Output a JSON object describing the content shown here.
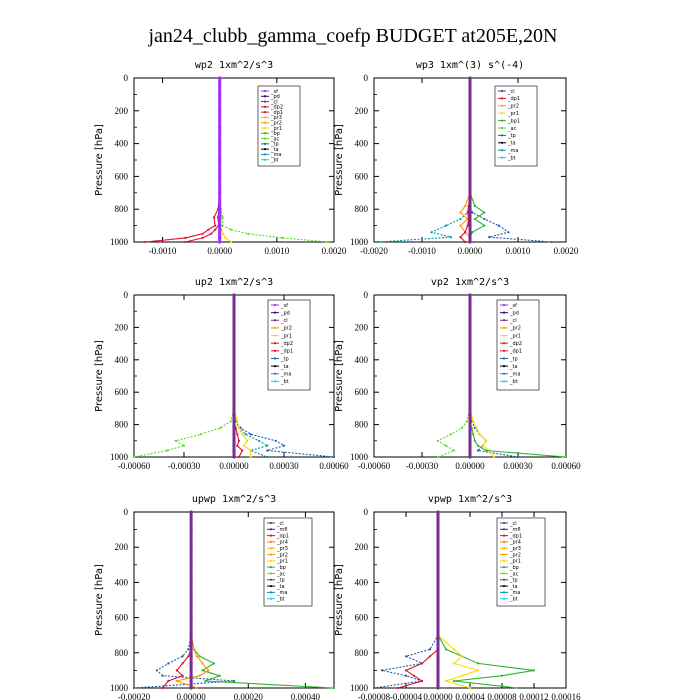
{
  "figure": {
    "title": "jan24_clubb_gamma_coefp  BUDGET at205E,20N"
  },
  "colors": {
    "sf": "#9b30ff",
    "pd": "#2a0f5f",
    "cl": "#7b2d8f",
    "mfl": "#5a1f7a",
    "dp1": "#e0102f",
    "dp2": "#e0102f",
    "pr1": "#ffd700",
    "pr2": "#ff9900",
    "pr3": "#ffb000",
    "pr4": "#ff7a00",
    "bp": "#2db52d",
    "ac": "#55dd22",
    "tp": "#1f5fa8",
    "ta": "#000000",
    "ma": "#0099aa",
    "bt": "#22ccee"
  },
  "chart_data": [
    {
      "type": "line",
      "title": "wp2  1xm^2/s^3",
      "ylabel": "Pressure [hPa]",
      "ylim": [
        1000,
        0
      ],
      "yticks": [
        0,
        200,
        400,
        600,
        800,
        1000
      ],
      "xlim": [
        -0.0015,
        0.002
      ],
      "xticks": [
        -0.001,
        0,
        0.001,
        0.002
      ],
      "xtick_labels": [
        "-0.0010",
        "0.0000",
        "0.0010",
        "0.0020"
      ],
      "legend": [
        "_sf",
        "_pd",
        "_cl",
        "_dp2",
        "_dp1",
        "_pr3",
        "_pr2",
        "_pr1",
        "_bp",
        "_ac",
        "_tp",
        "_ta",
        "_ma",
        "_bt"
      ],
      "pressure": [
        0,
        100,
        200,
        300,
        400,
        500,
        600,
        700,
        800,
        850,
        900,
        925,
        950,
        975,
        1000
      ],
      "series": [
        {
          "color_key": "dp1",
          "values": [
            0,
            0,
            0,
            0,
            0,
            0,
            0,
            0,
            -3e-05,
            -0.0001,
            -8e-05,
            -0.0002,
            -0.0003,
            -0.0006,
            -0.0013
          ]
        },
        {
          "color_key": "ac",
          "values": [
            0,
            0,
            0,
            0,
            0,
            0,
            0,
            0,
            2e-05,
            5e-05,
            5e-05,
            0.0002,
            0.0005,
            0.0011,
            0.0019
          ]
        },
        {
          "color_key": "dp2",
          "values": [
            0,
            0,
            0,
            0,
            0,
            0,
            0,
            0,
            -1e-05,
            -3e-05,
            -2e-05,
            -8e-05,
            -0.00015,
            -0.0003,
            -0.0006
          ]
        },
        {
          "color_key": "pr1",
          "values": [
            0,
            0,
            0,
            0,
            0,
            0,
            0,
            0,
            1e-05,
            2e-05,
            1e-05,
            3e-05,
            6e-05,
            0.0001,
            0.0002
          ]
        },
        {
          "color_key": "sf",
          "values": [
            0,
            0,
            0,
            0,
            0,
            0,
            0,
            0,
            0,
            0,
            0,
            0,
            0,
            0,
            0
          ]
        }
      ]
    },
    {
      "type": "line",
      "title": "wp3  1xm^(3) s^(-4)",
      "ylabel": "Pressure [hPa]",
      "ylim": [
        1000,
        0
      ],
      "yticks": [
        0,
        200,
        400,
        600,
        800,
        1000
      ],
      "xlim": [
        -0.002,
        0.002
      ],
      "xticks": [
        -0.002,
        -0.001,
        0,
        0.001,
        0.002
      ],
      "xtick_labels": [
        "-0.0020",
        "-0.0010",
        "0.0000",
        "0.0010",
        "0.0020"
      ],
      "legend": [
        "_cl",
        "_dp1",
        "_pr2",
        "_pr1",
        "_bp1",
        "_ac",
        "_tp",
        "_ta",
        "_ma",
        "_bt"
      ],
      "pressure": [
        0,
        100,
        200,
        300,
        400,
        500,
        600,
        700,
        780,
        820,
        860,
        900,
        940,
        970,
        1000
      ],
      "series": [
        {
          "color_key": "tp",
          "values": [
            0,
            0,
            0,
            0,
            0,
            0,
            0,
            0,
            0,
            5e-05,
            0.0003,
            0.0006,
            0.0008,
            0.0004,
            0.0017
          ]
        },
        {
          "color_key": "ma",
          "values": [
            0,
            0,
            0,
            0,
            0,
            0,
            0,
            0,
            0,
            -5e-05,
            -0.0002,
            -0.0005,
            -0.0008,
            -0.0004,
            -0.0019
          ]
        },
        {
          "color_key": "bp",
          "values": [
            0,
            0,
            0,
            0,
            0,
            0,
            0,
            0,
            0.0001,
            0.0003,
            0.0001,
            0.0003,
            5e-05,
            0,
            0
          ]
        },
        {
          "color_key": "pr2",
          "values": [
            0,
            0,
            0,
            0,
            0,
            0,
            0,
            0,
            -0.0001,
            -0.0002,
            -5e-05,
            -0.0002,
            -0.0001,
            0,
            0
          ]
        },
        {
          "color_key": "dp1",
          "values": [
            0,
            0,
            0,
            0,
            0,
            0,
            0,
            0,
            -3e-05,
            -5e-05,
            -3e-05,
            -5e-05,
            -0.0001,
            -0.0002,
            -0.0001
          ]
        },
        {
          "color_key": "cl",
          "values": [
            0,
            0,
            0,
            0,
            0,
            0,
            0,
            0,
            0,
            0,
            0,
            0,
            0,
            0,
            0
          ]
        }
      ]
    },
    {
      "type": "line",
      "title": "up2  1xm^2/s^3",
      "ylabel": "Pressure [hPa]",
      "ylim": [
        1000,
        0
      ],
      "yticks": [
        0,
        200,
        400,
        600,
        800,
        1000
      ],
      "xlim": [
        -0.0006,
        0.0006
      ],
      "xticks": [
        -0.0006,
        -0.0003,
        0,
        0.0003,
        0.0006
      ],
      "xtick_labels": [
        "-0.00060",
        "-0.00030",
        "0.00000",
        "0.00030",
        "0.00060"
      ],
      "legend": [
        "_sf",
        "_pd",
        "_cl",
        "_pr2",
        "_pr1",
        "_dp2",
        "_dp1",
        "_tp",
        "_ta",
        "_ma",
        "_bt"
      ],
      "pressure": [
        0,
        100,
        200,
        300,
        400,
        500,
        600,
        700,
        780,
        820,
        860,
        900,
        930,
        960,
        1000
      ],
      "series": [
        {
          "color_key": "ac",
          "values": [
            0,
            0,
            0,
            0,
            0,
            0,
            0,
            0,
            -2e-05,
            -8e-05,
            -0.0002,
            -0.00035,
            -0.0003,
            -0.0004,
            -0.0006
          ]
        },
        {
          "color_key": "tp",
          "values": [
            0,
            0,
            0,
            0,
            0,
            0,
            0,
            0,
            1e-05,
            4e-05,
            0.0001,
            0.00025,
            0.0003,
            0.0002,
            0.0006
          ]
        },
        {
          "color_key": "ma",
          "values": [
            0,
            0,
            0,
            0,
            0,
            0,
            0,
            0,
            1e-05,
            3e-05,
            7e-05,
            0.00015,
            0.0002,
            0.0001,
            0.0002
          ]
        },
        {
          "color_key": "pr1",
          "values": [
            0,
            0,
            0,
            0,
            0,
            0,
            0,
            0,
            2e-05,
            3e-05,
            5e-05,
            8e-05,
            6e-05,
            0.0001,
            0.0001
          ]
        },
        {
          "color_key": "dp1",
          "values": [
            0,
            0,
            0,
            0,
            0,
            0,
            0,
            0,
            0,
            1e-05,
            2e-05,
            3e-05,
            2e-05,
            5e-05,
            3e-05
          ]
        },
        {
          "color_key": "cl",
          "values": [
            0,
            0,
            0,
            0,
            0,
            0,
            0,
            0,
            0,
            0,
            0,
            0,
            0,
            0,
            0
          ]
        }
      ]
    },
    {
      "type": "line",
      "title": "vp2  1xm^2/s^3",
      "ylabel": "Pressure [hPa]",
      "ylim": [
        1000,
        0
      ],
      "yticks": [
        0,
        200,
        400,
        600,
        800,
        1000
      ],
      "xlim": [
        -0.0006,
        0.0006
      ],
      "xticks": [
        -0.0006,
        -0.0003,
        0,
        0.0003,
        0.0006
      ],
      "xtick_labels": [
        "-0.00060",
        "-0.00030",
        "0.00000",
        "0.00030",
        "0.00060"
      ],
      "legend": [
        "_sf",
        "_pd",
        "_cl",
        "_pr2",
        "_pr1",
        "_dp2",
        "_dp1",
        "_tp",
        "_ta",
        "_ma",
        "_bt"
      ],
      "pressure": [
        0,
        100,
        200,
        300,
        400,
        500,
        600,
        700,
        780,
        820,
        860,
        900,
        930,
        960,
        1000
      ],
      "series": [
        {
          "color_key": "ac",
          "values": [
            0,
            0,
            0,
            0,
            0,
            0,
            0,
            0,
            -2e-05,
            -5e-05,
            -0.00012,
            -0.0002,
            -0.00015,
            -0.0001,
            -0.0002
          ]
        },
        {
          "color_key": "tp",
          "values": [
            0,
            0,
            0,
            0,
            0,
            0,
            0,
            0,
            1e-05,
            3e-05,
            6e-05,
            0.0001,
            8e-05,
            5e-05,
            0.0003
          ]
        },
        {
          "color_key": "pr1",
          "values": [
            0,
            0,
            0,
            0,
            0,
            0,
            0,
            0,
            2e-05,
            4e-05,
            6e-05,
            0.0001,
            8e-05,
            0.00012,
            0.00015
          ]
        },
        {
          "color_key": "bp",
          "values": [
            0,
            0,
            0,
            0,
            0,
            0,
            0,
            0,
            0,
            1e-05,
            2e-05,
            3e-05,
            5e-05,
            0.0001,
            0.0006
          ]
        },
        {
          "color_key": "cl",
          "values": [
            0,
            0,
            0,
            0,
            0,
            0,
            0,
            0,
            0,
            0,
            0,
            0,
            0,
            0,
            0
          ]
        }
      ]
    },
    {
      "type": "line",
      "title": "upwp  1xm^2/s^3",
      "ylabel": "Pressure [hPa]",
      "ylim": [
        1000,
        0
      ],
      "yticks": [
        0,
        200,
        400,
        600,
        800,
        1000
      ],
      "xlim": [
        -0.0002,
        0.0005
      ],
      "xticks": [
        -0.0002,
        0,
        0.0002,
        0.0004
      ],
      "xtick_labels": [
        "-0.00020",
        "0.00000",
        "0.00020",
        "0.00040"
      ],
      "legend": [
        "_cl",
        "_mfl",
        "_dp1",
        "_pr4",
        "_pr3",
        "_pr2",
        "_pr1",
        "_bp",
        "_ac",
        "_tp",
        "_ta",
        "_ma",
        "_bt"
      ],
      "pressure": [
        0,
        100,
        200,
        300,
        400,
        500,
        600,
        700,
        780,
        820,
        860,
        900,
        930,
        960,
        1000
      ],
      "series": [
        {
          "color_key": "bp",
          "values": [
            0,
            0,
            0,
            0,
            0,
            0,
            0,
            0,
            1e-05,
            3e-05,
            8e-05,
            4e-05,
            0.0001,
            5e-05,
            0.0005
          ]
        },
        {
          "color_key": "tp",
          "values": [
            0,
            0,
            0,
            0,
            0,
            0,
            0,
            0,
            -1e-05,
            -3e-05,
            -8e-05,
            -0.00012,
            -0.0001,
            0.00015,
            -0.0002
          ]
        },
        {
          "color_key": "pr2",
          "values": [
            0,
            0,
            0,
            0,
            0,
            0,
            0,
            0,
            1e-05,
            2e-05,
            4e-05,
            6e-05,
            3e-05,
            -5e-05,
            2e-05
          ]
        },
        {
          "color_key": "dp1",
          "values": [
            0,
            0,
            0,
            0,
            0,
            0,
            0,
            0,
            0,
            -1e-05,
            -3e-05,
            -5e-05,
            -3e-05,
            -8e-05,
            -0.0001
          ]
        },
        {
          "color_key": "cl",
          "values": [
            0,
            0,
            0,
            0,
            0,
            0,
            0,
            0,
            0,
            0,
            0,
            0,
            0,
            0,
            0
          ]
        }
      ]
    },
    {
      "type": "line",
      "title": "vpwp  1xm^2/s^3",
      "ylabel": "Pressure [hPa]",
      "ylim": [
        1000,
        0
      ],
      "yticks": [
        0,
        200,
        400,
        600,
        800,
        1000
      ],
      "xlim": [
        -8e-05,
        0.00016
      ],
      "xticks": [
        -8e-05,
        -4e-05,
        0,
        4e-05,
        8e-05,
        0.00012,
        0.00016
      ],
      "xtick_labels": [
        "-0.00008",
        "-0.00004",
        "0.00000",
        "0.00004",
        "0.00008",
        "0.00012",
        "0.00016"
      ],
      "legend": [
        "_cl",
        "_mfl",
        "_dp1",
        "_pr4",
        "_pr3",
        "_pr2",
        "_pr1",
        "_bp",
        "_ac",
        "_tp",
        "_ta",
        "_ma",
        "_bt"
      ],
      "pressure": [
        0,
        100,
        200,
        300,
        400,
        500,
        600,
        700,
        780,
        820,
        860,
        900,
        930,
        960,
        1000
      ],
      "series": [
        {
          "color_key": "tp",
          "values": [
            0,
            0,
            0,
            0,
            0,
            0,
            0,
            0,
            -1e-05,
            -4e-05,
            -2e-05,
            -7e-05,
            -4e-05,
            -2e-05,
            -8e-05
          ]
        },
        {
          "color_key": "bp",
          "values": [
            0,
            0,
            0,
            0,
            0,
            0,
            0,
            0,
            1e-05,
            3e-05,
            5e-05,
            0.00012,
            8e-05,
            2e-05,
            0.0001
          ]
        },
        {
          "color_key": "pr1",
          "values": [
            0,
            0,
            0,
            0,
            0,
            0,
            0,
            0,
            2e-05,
            3e-05,
            2e-05,
            5e-05,
            3e-05,
            1e-05,
            4e-05
          ]
        },
        {
          "color_key": "dp1",
          "values": [
            0,
            0,
            0,
            0,
            0,
            0,
            0,
            0,
            0,
            -1e-05,
            -2e-05,
            -4e-05,
            -3e-05,
            -2e-05,
            -5e-05
          ]
        },
        {
          "color_key": "cl",
          "values": [
            0,
            0,
            0,
            0,
            0,
            0,
            0,
            0,
            0,
            0,
            0,
            0,
            0,
            0,
            0
          ]
        }
      ]
    }
  ]
}
